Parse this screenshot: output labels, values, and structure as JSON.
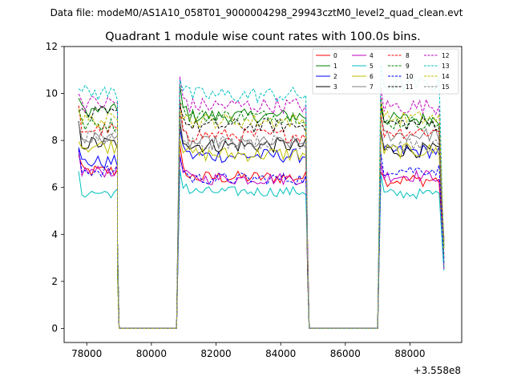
{
  "chart_data": {
    "type": "line",
    "suptitle": "Data file: modeM0/AS1A10_058T01_9000004298_29943cztM0_level2_quad_clean.evt",
    "title": "Quadrant 1 module wise count rates with 100.0s bins.",
    "xlabel": "",
    "ylabel": "",
    "x_offset_label": "+3.558e8",
    "xlim": [
      77300,
      89600
    ],
    "ylim": [
      -0.6,
      12.0
    ],
    "x_ticks": [
      78000,
      80000,
      82000,
      84000,
      86000,
      88000
    ],
    "x_tick_labels": [
      "78000",
      "80000",
      "82000",
      "84000",
      "86000",
      "88000"
    ],
    "y_ticks": [
      0,
      2,
      4,
      6,
      8,
      10,
      12
    ],
    "y_tick_labels": [
      "0",
      "2",
      "4",
      "6",
      "8",
      "10",
      "12"
    ],
    "bin_width": 100,
    "segments": [
      {
        "start": 77750,
        "end": 78950,
        "fall_end": 79000,
        "gap_end": 80780
      },
      {
        "start": 80880,
        "end": 84780,
        "fall_end": 84880,
        "gap_end": 87000
      },
      {
        "start": 87100,
        "end": 88980,
        "fall_end": 89100,
        "gap_end": null
      }
    ],
    "legend_position": "top-right",
    "series": [
      {
        "name": "0",
        "color": "#ff0000",
        "dashed": false,
        "level": 6.6,
        "noise": 0.28
      },
      {
        "name": "1",
        "color": "#008000",
        "dashed": false,
        "level": 9.0,
        "noise": 0.3
      },
      {
        "name": "2",
        "color": "#0000ff",
        "dashed": false,
        "level": 7.3,
        "noise": 0.3
      },
      {
        "name": "3",
        "color": "#000000",
        "dashed": false,
        "level": 7.6,
        "noise": 0.32
      },
      {
        "name": "4",
        "color": "#bf00bf",
        "dashed": false,
        "level": 6.4,
        "noise": 0.26
      },
      {
        "name": "5",
        "color": "#00bfbf",
        "dashed": false,
        "level": 5.6,
        "noise": 0.22
      },
      {
        "name": "6",
        "color": "#bfbf00",
        "dashed": false,
        "level": 7.5,
        "noise": 0.32
      },
      {
        "name": "7",
        "color": "#808080",
        "dashed": false,
        "level": 8.0,
        "noise": 0.3
      },
      {
        "name": "8",
        "color": "#ff0000",
        "dashed": true,
        "level": 8.2,
        "noise": 0.3
      },
      {
        "name": "9",
        "color": "#008000",
        "dashed": true,
        "level": 8.8,
        "noise": 0.3
      },
      {
        "name": "10",
        "color": "#0000ff",
        "dashed": true,
        "level": 6.5,
        "noise": 0.26
      },
      {
        "name": "11",
        "color": "#000000",
        "dashed": true,
        "level": 8.9,
        "noise": 0.32
      },
      {
        "name": "12",
        "color": "#bf00bf",
        "dashed": true,
        "level": 9.4,
        "noise": 0.34
      },
      {
        "name": "13",
        "color": "#00bfbf",
        "dashed": true,
        "level": 10.1,
        "noise": 0.35
      },
      {
        "name": "14",
        "color": "#bfbf00",
        "dashed": true,
        "level": 9.1,
        "noise": 0.32
      },
      {
        "name": "15",
        "color": "#808080",
        "dashed": true,
        "level": 8.0,
        "noise": 0.3
      }
    ]
  }
}
